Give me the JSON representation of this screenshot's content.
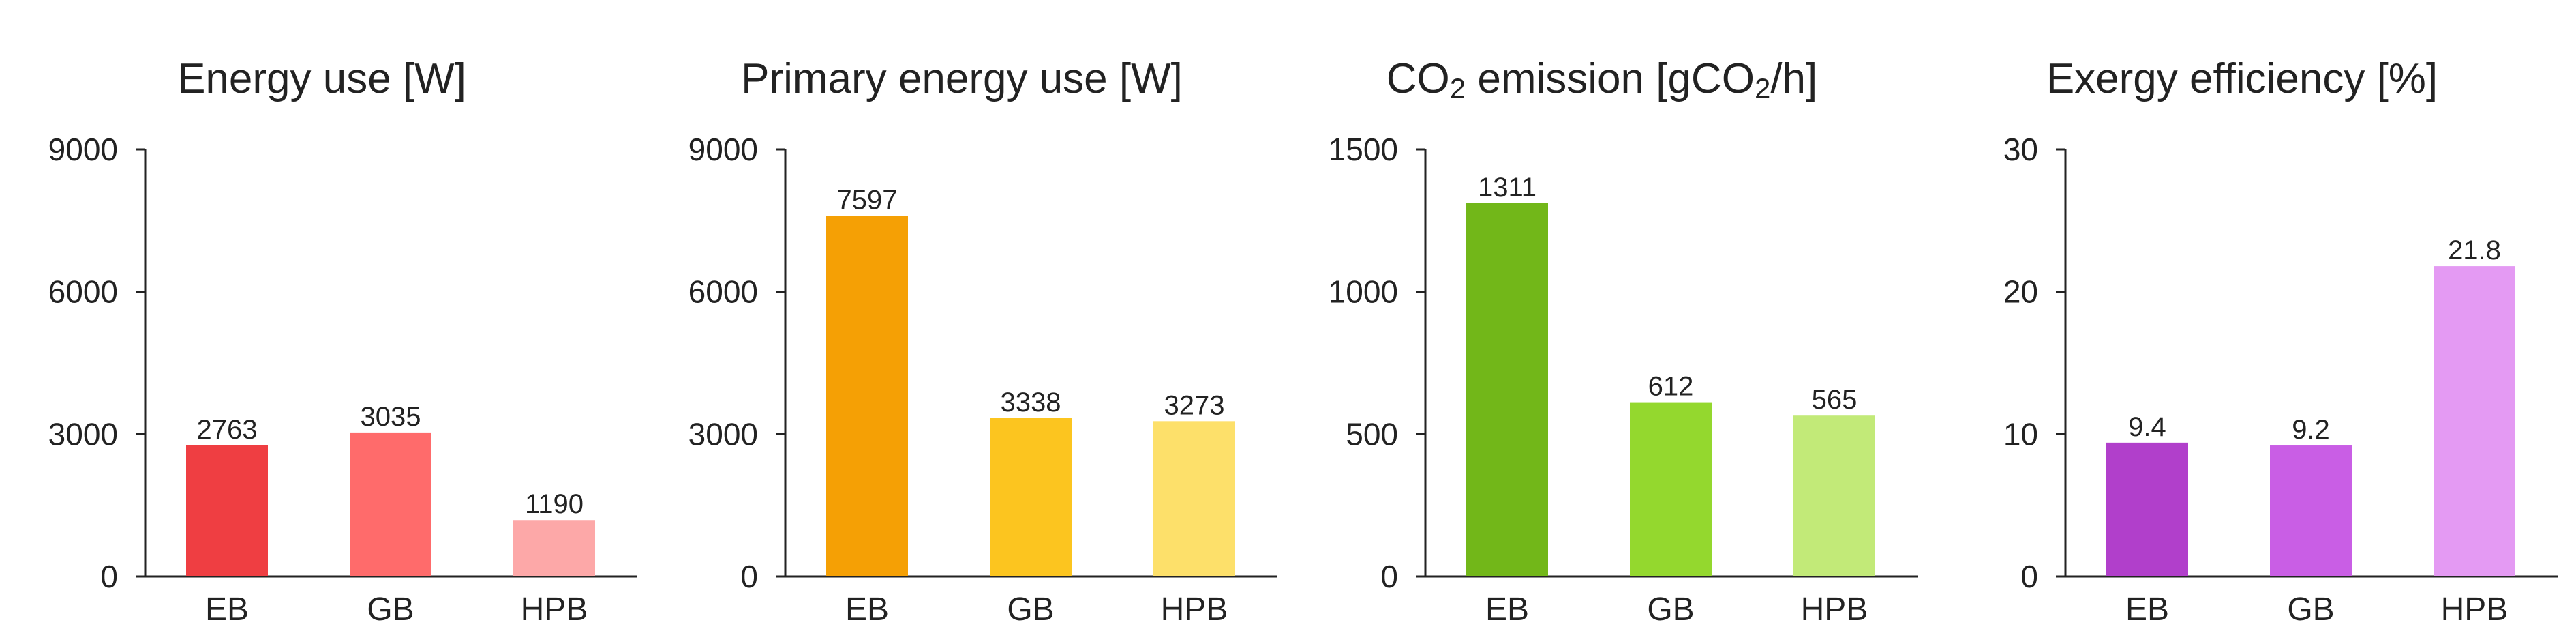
{
  "chart_data": [
    {
      "type": "bar",
      "title": "Energy use [W]",
      "categories": [
        "EB",
        "GB",
        "HPB"
      ],
      "values": [
        2763,
        3035,
        1190
      ],
      "value_labels": [
        "2763",
        "3035",
        "1190"
      ],
      "ylim": [
        0,
        9000
      ],
      "yticks": [
        0,
        3000,
        6000,
        9000
      ],
      "ytick_labels": [
        "0",
        "3000",
        "6000",
        "9000"
      ],
      "colors": [
        "#ef3e42",
        "#ff6b6b",
        "#fda8a8"
      ],
      "grid": false,
      "xlabel": "",
      "ylabel": ""
    },
    {
      "type": "bar",
      "title": "Primary energy use [W]",
      "categories": [
        "EB",
        "GB",
        "HPB"
      ],
      "values": [
        7597,
        3338,
        3273
      ],
      "value_labels": [
        "7597",
        "3338",
        "3273"
      ],
      "ylim": [
        0,
        9000
      ],
      "yticks": [
        0,
        3000,
        6000,
        9000
      ],
      "ytick_labels": [
        "0",
        "3000",
        "6000",
        "9000"
      ],
      "colors": [
        "#f5a005",
        "#fcc51f",
        "#fde06a"
      ],
      "grid": false,
      "xlabel": "",
      "ylabel": ""
    },
    {
      "type": "bar",
      "title_parts": [
        "CO",
        "2",
        " emission [gCO",
        "2",
        "/h]"
      ],
      "categories": [
        "EB",
        "GB",
        "HPB"
      ],
      "values": [
        1311,
        612,
        565
      ],
      "value_labels": [
        "1311",
        "612",
        "565"
      ],
      "ylim": [
        0,
        1500
      ],
      "yticks": [
        0,
        500,
        1000,
        1500
      ],
      "ytick_labels": [
        "0",
        "500",
        "1000",
        "1500"
      ],
      "colors": [
        "#72b719",
        "#94d82e",
        "#c2ea78"
      ],
      "grid": false,
      "xlabel": "",
      "ylabel": ""
    },
    {
      "type": "bar",
      "title": "Exergy efficiency [%]",
      "categories": [
        "EB",
        "GB",
        "HPB"
      ],
      "values": [
        9.4,
        9.2,
        21.8
      ],
      "value_labels": [
        "9.4",
        "9.2",
        "21.8"
      ],
      "ylim": [
        0,
        30
      ],
      "yticks": [
        0,
        10,
        20,
        30
      ],
      "ytick_labels": [
        "0",
        "10",
        "20",
        "30"
      ],
      "colors": [
        "#b13fcb",
        "#c95ee5",
        "#e49af3"
      ],
      "grid": false,
      "xlabel": "",
      "ylabel": ""
    }
  ]
}
